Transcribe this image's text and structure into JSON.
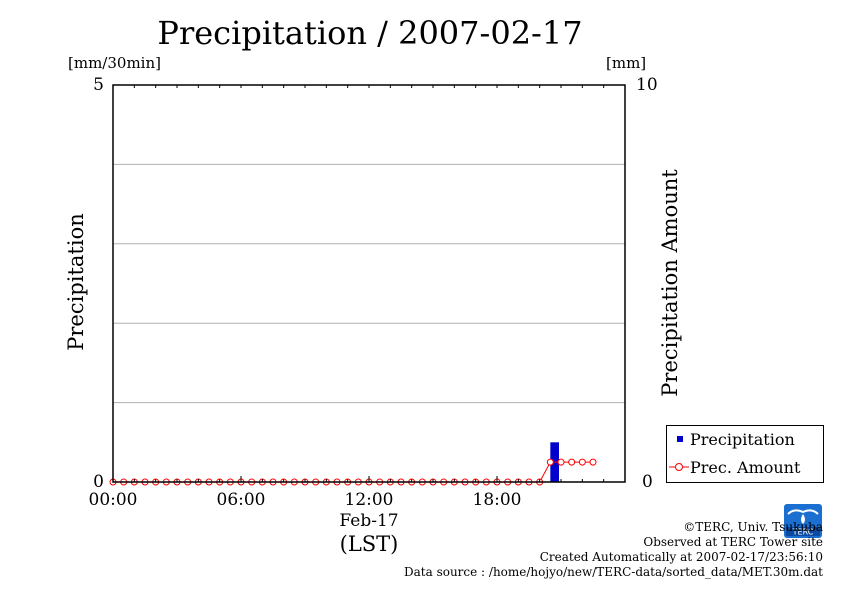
{
  "chart_data": {
    "type": "bar+line",
    "title": "Precipitation / 2007-02-17",
    "ylabel_left": "Precipitation",
    "ylabel_right": "Precipitation Amount",
    "yunit_left": "[mm/30min]",
    "yunit_right": "[mm]",
    "ylim_left": [
      0,
      5
    ],
    "ylim_right": [
      0,
      10
    ],
    "yticks_left": [
      "0",
      "5"
    ],
    "yticks_right": [
      "0",
      "10"
    ],
    "grid_y_left": [
      1,
      2,
      3,
      4
    ],
    "xlim_hours": [
      0,
      24
    ],
    "xticks": [
      {
        "hour": 0,
        "label": "00:00"
      },
      {
        "hour": 6,
        "label": "06:00"
      },
      {
        "hour": 12,
        "label": "12:00"
      },
      {
        "hour": 18,
        "label": "18:00"
      }
    ],
    "xlabel_date": "Feb-17",
    "xlabel_unit": "(LST)",
    "series": [
      {
        "name": "Precipitation",
        "kind": "bar",
        "color": "#0000cc",
        "axis": "left",
        "x_hours": [
          20.5
        ],
        "values": [
          0.5
        ]
      },
      {
        "name": "Prec. Amount",
        "kind": "line",
        "color": "#ff0000",
        "axis": "right",
        "x_hours": [
          0,
          0.5,
          1,
          1.5,
          2,
          2.5,
          3,
          3.5,
          4,
          4.5,
          5,
          5.5,
          6,
          6.5,
          7,
          7.5,
          8,
          8.5,
          9,
          9.5,
          10,
          10.5,
          11,
          11.5,
          12,
          12.5,
          13,
          13.5,
          14,
          14.5,
          15,
          15.5,
          16,
          16.5,
          17,
          17.5,
          18,
          18.5,
          19,
          19.5,
          20,
          20.5,
          21,
          21.5,
          22,
          22.5
        ],
        "values": [
          0,
          0,
          0,
          0,
          0,
          0,
          0,
          0,
          0,
          0,
          0,
          0,
          0,
          0,
          0,
          0,
          0,
          0,
          0,
          0,
          0,
          0,
          0,
          0,
          0,
          0,
          0,
          0,
          0,
          0,
          0,
          0,
          0,
          0,
          0,
          0,
          0,
          0,
          0,
          0,
          0,
          0.5,
          0.5,
          0.5,
          0.5,
          0.5
        ]
      }
    ],
    "legend": [
      {
        "label": "Precipitation",
        "marker": "square",
        "color": "#0000cc"
      },
      {
        "label": "Prec. Amount",
        "marker": "circle-line",
        "color": "#ff0000"
      }
    ]
  },
  "footer": {
    "copyright": "©TERC, Univ. Tsukuba",
    "observed": "Observed at TERC Tower site",
    "created": "Created Automatically at 2007-02-17/23:56:10",
    "source": "Data source : /home/hojyo/new/TERC-data/sorted_data/MET.30m.dat"
  },
  "logo": {
    "text": "TERC"
  }
}
